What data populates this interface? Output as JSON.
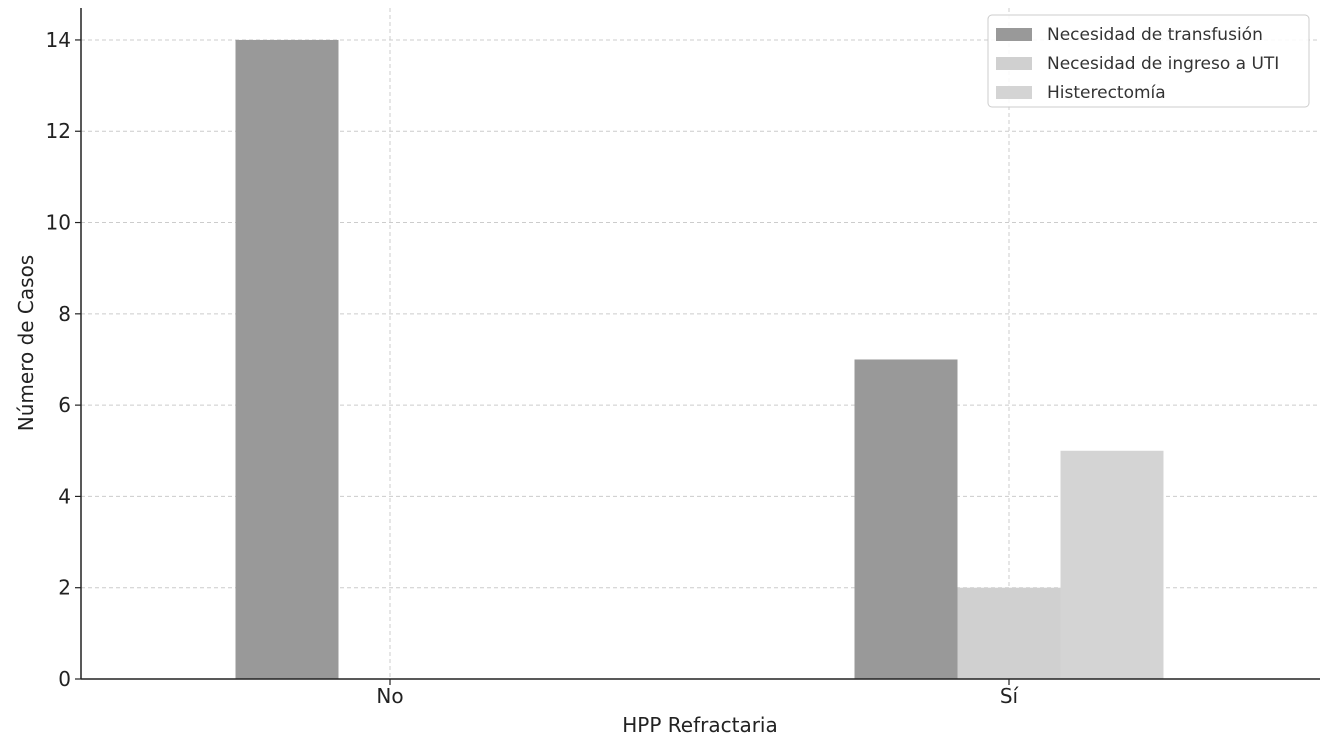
{
  "chart_data": {
    "type": "bar",
    "categories": [
      "No",
      "Sí"
    ],
    "series": [
      {
        "name": "Necesidad de transfusión",
        "values": [
          14,
          7
        ],
        "color": "#999999"
      },
      {
        "name": "Necesidad de ingreso a UTI",
        "values": [
          0,
          2
        ],
        "color": "#d0d0d0"
      },
      {
        "name": "Histerectomía",
        "values": [
          0,
          5
        ],
        "color": "#d4d4d4"
      }
    ],
    "title": "",
    "xlabel": "HPP Refractaria",
    "ylabel": "Número de Casos",
    "ylim": [
      0,
      14.7
    ],
    "yticks": [
      0,
      2,
      4,
      6,
      8,
      10,
      12,
      14
    ],
    "grid": true,
    "legend_position": "top-right"
  }
}
